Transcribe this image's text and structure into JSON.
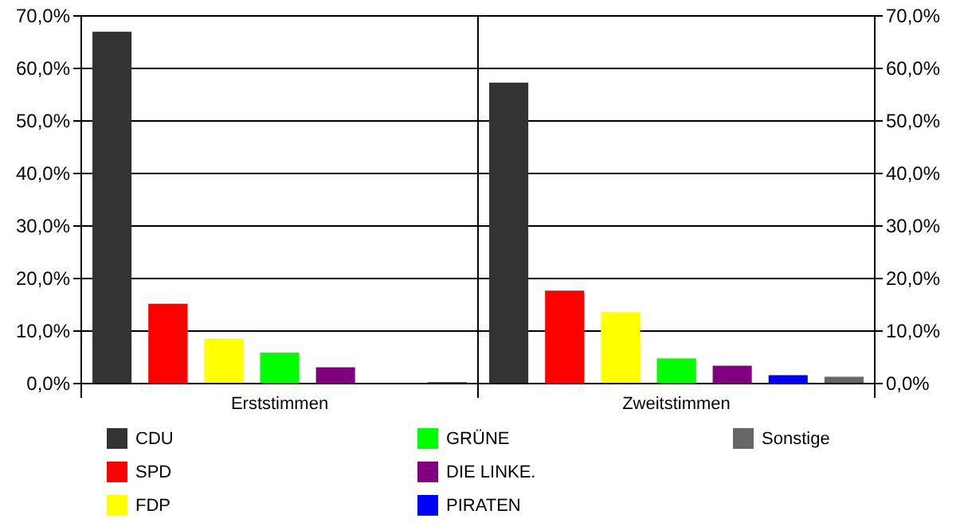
{
  "chart_data": {
    "type": "bar",
    "categories": [
      "Erststimmen",
      "Zweitstimmen"
    ],
    "series": [
      {
        "name": "CDU",
        "color": "#333333",
        "values": [
          67.0,
          57.3
        ]
      },
      {
        "name": "SPD",
        "color": "#ff0000",
        "values": [
          15.2,
          17.7
        ]
      },
      {
        "name": "FDP",
        "color": "#ffff00",
        "values": [
          8.6,
          13.6
        ]
      },
      {
        "name": "GRÜNE",
        "color": "#00ff00",
        "values": [
          5.9,
          4.8
        ]
      },
      {
        "name": "DIE LINKE.",
        "color": "#800080",
        "values": [
          3.1,
          3.4
        ]
      },
      {
        "name": "PIRATEN",
        "color": "#0000ff",
        "values": [
          null,
          1.6
        ]
      },
      {
        "name": "Sonstige",
        "color": "#666666",
        "values": [
          0.3,
          1.3
        ]
      }
    ],
    "ylim": [
      0,
      70
    ],
    "yticks": [
      {
        "value": 0,
        "label": "0,0%"
      },
      {
        "value": 10,
        "label": "10,0%"
      },
      {
        "value": 20,
        "label": "20,0%"
      },
      {
        "value": 30,
        "label": "30,0%"
      },
      {
        "value": 40,
        "label": "40,0%"
      },
      {
        "value": 50,
        "label": "50,0%"
      },
      {
        "value": 60,
        "label": "60,0%"
      },
      {
        "value": 70,
        "label": "70,0%"
      }
    ],
    "y2lim": [
      0,
      70
    ],
    "y2ticks": [
      {
        "value": 0,
        "label": "0,0%"
      },
      {
        "value": 10,
        "label": "10,0%"
      },
      {
        "value": 20,
        "label": "20,0%"
      },
      {
        "value": 30,
        "label": "30,0%"
      },
      {
        "value": 40,
        "label": "40,0%"
      },
      {
        "value": 50,
        "label": "50,0%"
      },
      {
        "value": 60,
        "label": "60,0%"
      },
      {
        "value": 70,
        "label": "70,0%"
      }
    ],
    "grid": "y",
    "legend": "bottom"
  }
}
